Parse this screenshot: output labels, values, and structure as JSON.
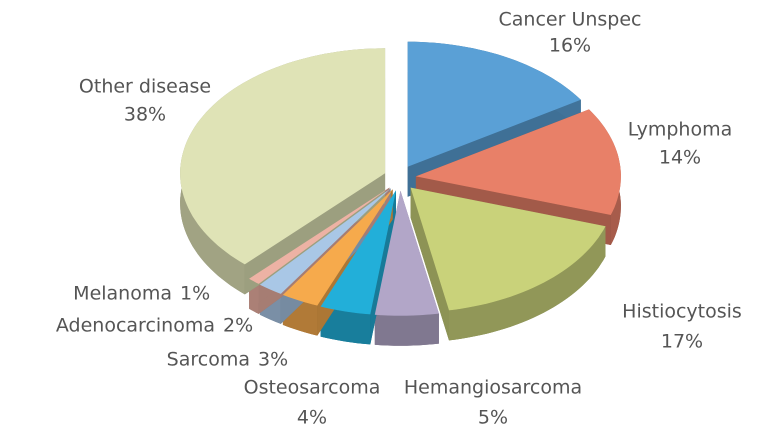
{
  "chart_data": {
    "type": "pie",
    "categories": [
      "Cancer Unspec",
      "Lymphoma",
      "Histiocytosis",
      "Hemangiosarcoma",
      "Osteosarcoma",
      "Sarcoma",
      "Adenocarcinoma",
      "Melanoma",
      "Other disease"
    ],
    "values": [
      16,
      14,
      17,
      5,
      4,
      3,
      2,
      1,
      38
    ],
    "value_labels": [
      "16%",
      "14%",
      "17%",
      "5%",
      "4%",
      "3%",
      "2%",
      "1%",
      "38%"
    ],
    "colors": [
      "#5aa0d6",
      "#e88068",
      "#c9d27a",
      "#b2a6c8",
      "#22afd9",
      "#f6aa4c",
      "#a9c7e6",
      "#edb2a4",
      "#dfe3b6"
    ]
  }
}
